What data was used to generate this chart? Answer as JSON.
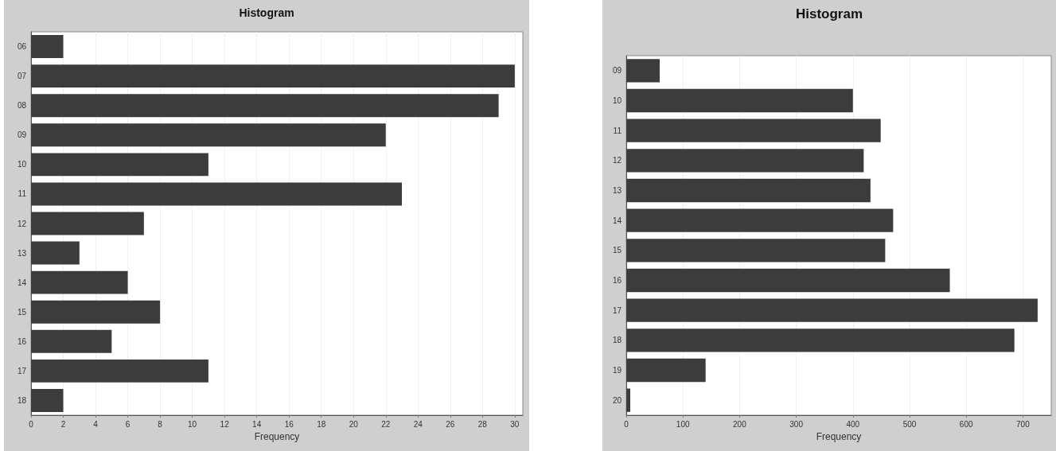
{
  "chart_data": [
    {
      "type": "bar",
      "orientation": "horizontal",
      "title": "Histogram",
      "xlabel": "Frequency",
      "categories": [
        "06",
        "07",
        "08",
        "09",
        "10",
        "11",
        "12",
        "13",
        "14",
        "15",
        "16",
        "17",
        "18"
      ],
      "values": [
        2,
        30,
        29,
        22,
        11,
        23,
        7,
        3,
        6,
        8,
        5,
        11,
        2
      ],
      "color": "#3c3c3c",
      "xlim": [
        0,
        30.5
      ],
      "xticks": [
        0,
        2,
        4,
        6,
        8,
        10,
        12,
        14,
        16,
        18,
        20,
        22,
        24,
        26,
        28,
        30
      ],
      "grid": "x"
    },
    {
      "type": "bar",
      "orientation": "horizontal",
      "title": "Histogram",
      "xlabel": "Frequency",
      "categories": [
        "09",
        "10",
        "11",
        "12",
        "13",
        "14",
        "15",
        "16",
        "17",
        "18",
        "19",
        "20"
      ],
      "values": [
        59,
        400,
        449,
        419,
        431,
        471,
        457,
        571,
        726,
        685,
        140,
        7
      ],
      "color": "#3c3c3c",
      "xlim": [
        0,
        750
      ],
      "xticks": [
        0,
        100,
        200,
        300,
        400,
        500,
        600,
        700
      ],
      "grid": "x"
    }
  ]
}
